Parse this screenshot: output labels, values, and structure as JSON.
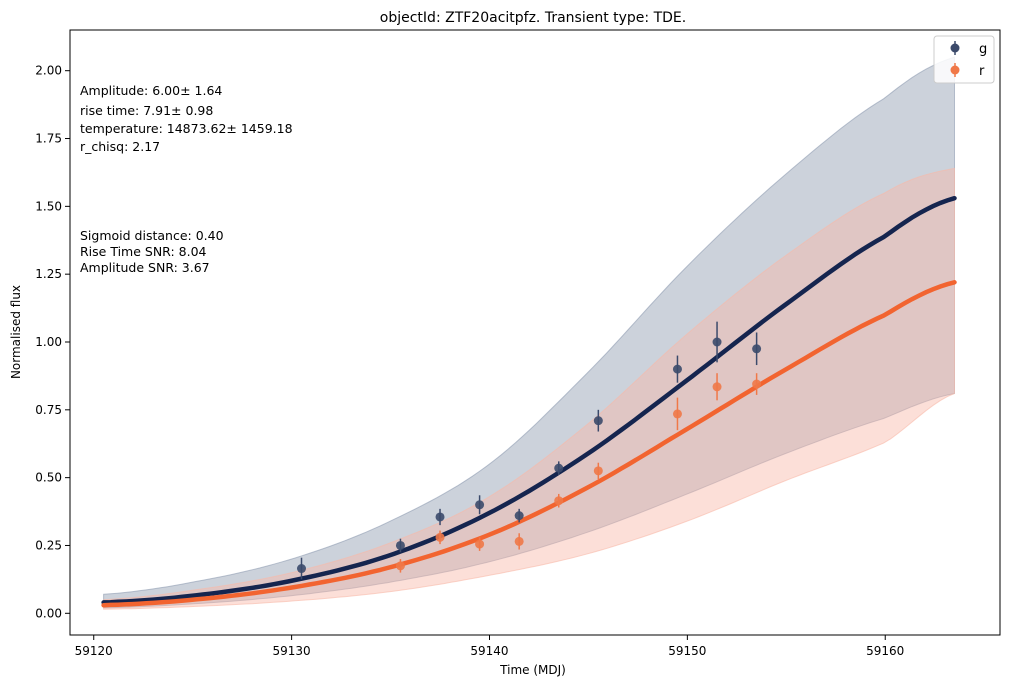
{
  "chart_data": {
    "type": "line",
    "title": "objectId: ZTF20acitpfz. Transient type: TDE.",
    "xlabel": "Time (MDJ)",
    "ylabel": "Normalised flux",
    "xlim": [
      59118.8,
      59165.8
    ],
    "ylim": [
      -0.08,
      2.15
    ],
    "xticks": [
      59120,
      59130,
      59140,
      59150,
      59160
    ],
    "yticks": [
      0.0,
      0.25,
      0.5,
      0.75,
      1.0,
      1.25,
      1.5,
      1.75,
      2.0
    ],
    "grid": false,
    "legend": {
      "placement": "top-right",
      "entries": [
        "g",
        "r"
      ]
    },
    "annotations": {
      "fit_params": [
        "Amplitude: 6.00± 1.64",
        "rise time: 7.91± 0.98",
        "temperature: 14873.62± 1459.18",
        "r_chisq: 2.17"
      ],
      "snr": [
        "Sigmoid distance: 0.40",
        "Rise Time SNR: 8.04",
        "Amplitude SNR: 3.67"
      ]
    },
    "series": [
      {
        "name": "g",
        "color": "#15254f",
        "marker_color": "#3b4a6b",
        "band_color": "#8d9bb0",
        "points": [
          {
            "x": 59130.5,
            "y": 0.165,
            "err": 0.04
          },
          {
            "x": 59135.5,
            "y": 0.25,
            "err": 0.025
          },
          {
            "x": 59137.5,
            "y": 0.355,
            "err": 0.03
          },
          {
            "x": 59139.5,
            "y": 0.4,
            "err": 0.035
          },
          {
            "x": 59141.5,
            "y": 0.36,
            "err": 0.025
          },
          {
            "x": 59143.5,
            "y": 0.535,
            "err": 0.025
          },
          {
            "x": 59145.5,
            "y": 0.71,
            "err": 0.04
          },
          {
            "x": 59149.5,
            "y": 0.9,
            "err": 0.05
          },
          {
            "x": 59151.5,
            "y": 1.0,
            "err": 0.075
          },
          {
            "x": 59153.5,
            "y": 0.975,
            "err": 0.06
          }
        ],
        "fit": {
          "x": [
            59120.5,
            59125,
            59130,
            59135,
            59140,
            59145,
            59150,
            59155,
            59160,
            59163.5
          ],
          "y": [
            0.04,
            0.065,
            0.12,
            0.215,
            0.37,
            0.59,
            0.86,
            1.14,
            1.39,
            1.53
          ],
          "upper": [
            0.07,
            0.115,
            0.2,
            0.34,
            0.55,
            0.89,
            1.28,
            1.62,
            1.9,
            2.05
          ],
          "lower": [
            0.02,
            0.035,
            0.065,
            0.115,
            0.19,
            0.3,
            0.44,
            0.59,
            0.72,
            0.81
          ]
        }
      },
      {
        "name": "r",
        "color": "#f26430",
        "marker_color": "#f07848",
        "band_color": "#f9b9a8",
        "points": [
          {
            "x": 59135.5,
            "y": 0.175,
            "err": 0.025
          },
          {
            "x": 59137.5,
            "y": 0.28,
            "err": 0.025
          },
          {
            "x": 59139.5,
            "y": 0.255,
            "err": 0.025
          },
          {
            "x": 59141.5,
            "y": 0.265,
            "err": 0.03
          },
          {
            "x": 59143.5,
            "y": 0.415,
            "err": 0.025
          },
          {
            "x": 59145.5,
            "y": 0.525,
            "err": 0.03
          },
          {
            "x": 59149.5,
            "y": 0.735,
            "err": 0.06
          },
          {
            "x": 59151.5,
            "y": 0.835,
            "err": 0.05
          },
          {
            "x": 59153.5,
            "y": 0.845,
            "err": 0.04
          }
        ],
        "fit": {
          "x": [
            59120.5,
            59125,
            59130,
            59135,
            59140,
            59145,
            59150,
            59155,
            59160,
            59163.5
          ],
          "y": [
            0.03,
            0.05,
            0.095,
            0.17,
            0.29,
            0.465,
            0.68,
            0.9,
            1.1,
            1.22
          ],
          "upper": [
            0.05,
            0.085,
            0.15,
            0.26,
            0.43,
            0.7,
            1.03,
            1.32,
            1.55,
            1.64
          ],
          "lower": [
            0.015,
            0.025,
            0.045,
            0.08,
            0.14,
            0.22,
            0.34,
            0.49,
            0.63,
            0.81
          ]
        }
      }
    ]
  }
}
